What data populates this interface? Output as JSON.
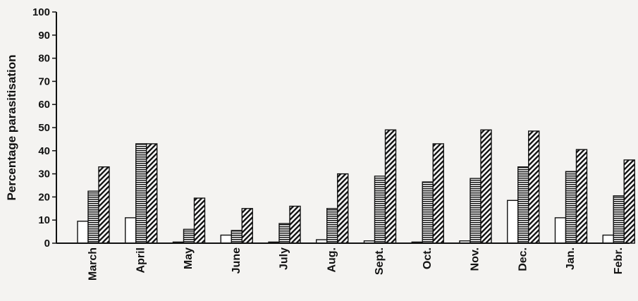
{
  "chart_data": {
    "type": "bar",
    "title": "",
    "xlabel": "",
    "ylabel": "Percentage parasitisation",
    "ylim": [
      0,
      100
    ],
    "yticks": [
      0,
      10,
      20,
      30,
      40,
      50,
      60,
      70,
      80,
      90,
      100
    ],
    "grid": false,
    "legend": "none",
    "categories": [
      "March",
      "April",
      "May",
      "June",
      "July",
      "Aug.",
      "Sept.",
      "Oct.",
      "Nov.",
      "Dec.",
      "Jan.",
      "Febr."
    ],
    "series": [
      {
        "pattern": "white",
        "values": [
          9.5,
          11,
          0.5,
          3.5,
          0.5,
          1.5,
          1,
          0.5,
          1,
          18.5,
          11,
          3.5
        ]
      },
      {
        "pattern": "horizontal-lines",
        "values": [
          22.5,
          43,
          6,
          5.5,
          8.5,
          15,
          29,
          26.5,
          28,
          33,
          31,
          20.5
        ]
      },
      {
        "pattern": "diagonal-lines",
        "values": [
          33,
          43,
          19.5,
          15,
          16,
          30,
          49,
          43,
          49,
          48.5,
          40.5,
          36
        ]
      }
    ],
    "colors": {
      "ink": "#111111",
      "background": "#f4f3f1",
      "bar_fill": "#ffffff"
    }
  }
}
